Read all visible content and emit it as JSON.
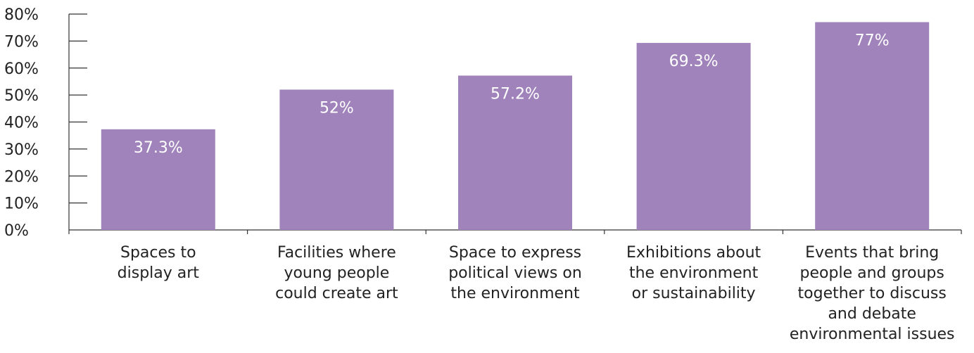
{
  "chart_data": {
    "type": "bar",
    "title": "",
    "xlabel": "",
    "ylabel": "",
    "ylim": [
      0,
      80
    ],
    "y_ticks": [
      "0%",
      "10%",
      "20%",
      "30%",
      "40%",
      "50%",
      "60%",
      "70%",
      "80%"
    ],
    "y_tick_values": [
      0,
      10,
      20,
      30,
      40,
      50,
      60,
      70,
      80
    ],
    "grid": false,
    "legend": "none",
    "categories": [
      [
        "Spaces to",
        "display art"
      ],
      [
        "Facilities where",
        "young people",
        "could create art"
      ],
      [
        "Space to express",
        "political views on",
        "the environment"
      ],
      [
        "Exhibitions about",
        "the environment",
        "or sustainability"
      ],
      [
        "Events that bring",
        "people and groups",
        "together to discuss",
        "and debate",
        "environmental issues"
      ]
    ],
    "values": [
      37.3,
      52,
      57.2,
      69.3,
      77
    ],
    "data_labels": [
      "37.3%",
      "52%",
      "57.2%",
      "69.3%",
      "77%"
    ],
    "colors": {
      "bar": "#a083bb",
      "axis": "#333333",
      "label_on_bar": "#ffffff",
      "text": "#222222"
    }
  }
}
